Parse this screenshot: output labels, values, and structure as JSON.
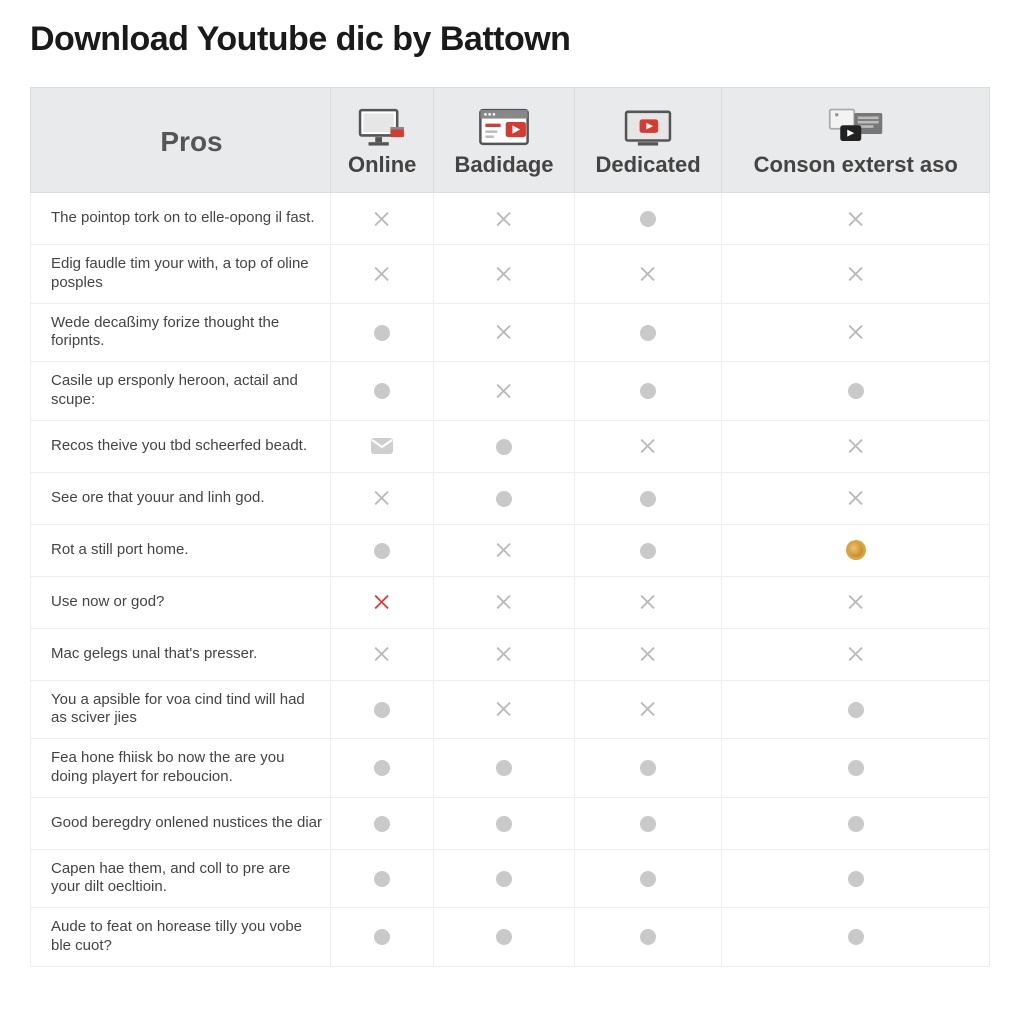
{
  "title": "Download Youtube dic by Battown",
  "table": {
    "type": "table",
    "header_label": "Pros",
    "columns": [
      {
        "label": "Online",
        "icon": "monitor"
      },
      {
        "label": "Badidage",
        "icon": "browser-play"
      },
      {
        "label": "Dedicated",
        "icon": "screen-play"
      },
      {
        "label": "Conson exterst aso",
        "icon": "frames-play"
      }
    ],
    "rows": [
      {
        "label": "The pointop tork on to elle-opong il fast.",
        "cells": [
          "cross-grey",
          "cross-grey",
          "dot",
          "cross-grey"
        ]
      },
      {
        "label": "Edig faudle tim your with, a top of oline posples",
        "cells": [
          "cross-grey",
          "cross-grey",
          "cross-grey",
          "cross-grey"
        ]
      },
      {
        "label": "Wede decaßimy forize thought the foripnts.",
        "cells": [
          "dot",
          "cross-grey",
          "dot",
          "cross-grey"
        ]
      },
      {
        "label": "Casile up ersponly heroon, actail and scupe:",
        "cells": [
          "dot",
          "cross-grey",
          "dot",
          "dot"
        ]
      },
      {
        "label": "Recos theive you tbd scheerfed beadt.",
        "cells": [
          "envelope",
          "dot",
          "cross-grey",
          "cross-grey"
        ]
      },
      {
        "label": "See ore that youur and linh god.",
        "cells": [
          "cross-grey",
          "dot",
          "dot",
          "cross-grey"
        ]
      },
      {
        "label": "Rot a still port home.",
        "cells": [
          "dot",
          "cross-grey",
          "dot",
          "emoji"
        ]
      },
      {
        "label": "Use now or god?",
        "cells": [
          "cross-red",
          "cross-grey",
          "cross-grey",
          "cross-grey"
        ]
      },
      {
        "label": "Mac gelegs unal that's presser.",
        "cells": [
          "cross-grey",
          "cross-grey",
          "cross-grey",
          "cross-grey"
        ]
      },
      {
        "label": "You a apsible for voa cind tind will had as sciver jies",
        "cells": [
          "dot",
          "cross-grey",
          "cross-grey",
          "dot"
        ]
      },
      {
        "label": "Fea hone fhiisk bo now the are you doing playert for reboucion.",
        "cells": [
          "dot",
          "dot",
          "dot",
          "dot"
        ]
      },
      {
        "label": "Good beregdry onlened nustices the diar",
        "cells": [
          "dot",
          "dot",
          "dot",
          "dot"
        ]
      },
      {
        "label": "Capen hae them, and coll to pre are your dilt oecltioin.",
        "cells": [
          "dot",
          "dot",
          "dot",
          "dot"
        ]
      },
      {
        "label": "Aude to feat on horease tilly you vobe ble cuot?",
        "cells": [
          "dot",
          "dot",
          "dot",
          "dot"
        ]
      }
    ],
    "colors": {
      "header_bg": "#e9eaeb",
      "border": "#eeeeee",
      "text": "#444444",
      "dot": "#c9c9c9",
      "cross_grey": "#b9b9b9",
      "cross_red": "#e53935"
    }
  }
}
